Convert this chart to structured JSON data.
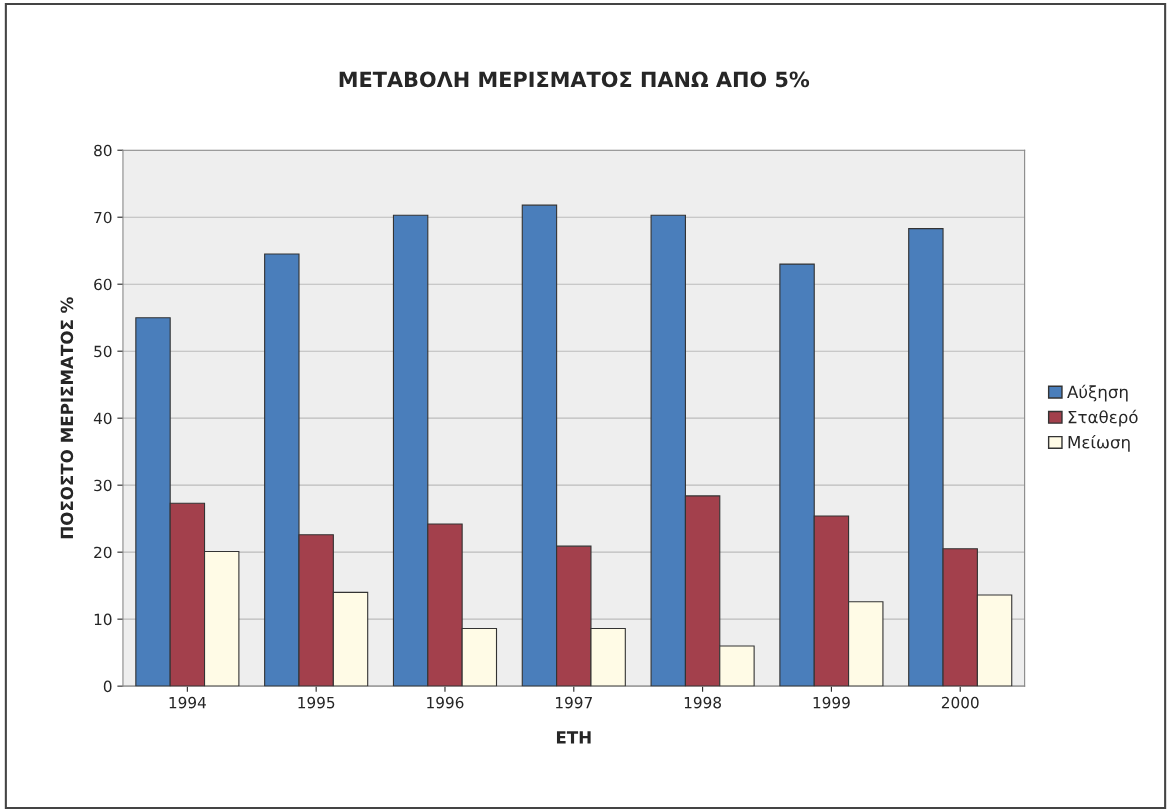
{
  "chart_data": {
    "type": "bar",
    "title": "ΜΕΤΑΒΟΛΗ ΜΕΡΙΣΜΑΤΟΣ ΠΑΝΩ ΑΠΟ 5%",
    "xlabel": "ΕΤΗ",
    "ylabel": "ΠΟΣΟΣΤΟ ΜΕΡΙΣΜΑΤΟΣ %",
    "categories": [
      "1994",
      "1995",
      "1996",
      "1997",
      "1998",
      "1999",
      "2000"
    ],
    "series": [
      {
        "name": "Αύξηση",
        "color": "#4a7ebb",
        "values": [
          55,
          64.5,
          70.3,
          71.8,
          70.3,
          63,
          68.3
        ]
      },
      {
        "name": "Σταθερό",
        "color": "#a3404c",
        "values": [
          27.3,
          22.6,
          24.2,
          20.9,
          28.4,
          25.4,
          20.5
        ]
      },
      {
        "name": "Μείωση",
        "color": "#fffbe6",
        "values": [
          20.1,
          14,
          8.6,
          8.6,
          6,
          12.6,
          13.6
        ]
      }
    ],
    "ylim": [
      0,
      80
    ],
    "yticks": [
      0,
      10,
      20,
      30,
      40,
      50,
      60,
      70,
      80
    ],
    "grid": "y",
    "legend": "right"
  }
}
